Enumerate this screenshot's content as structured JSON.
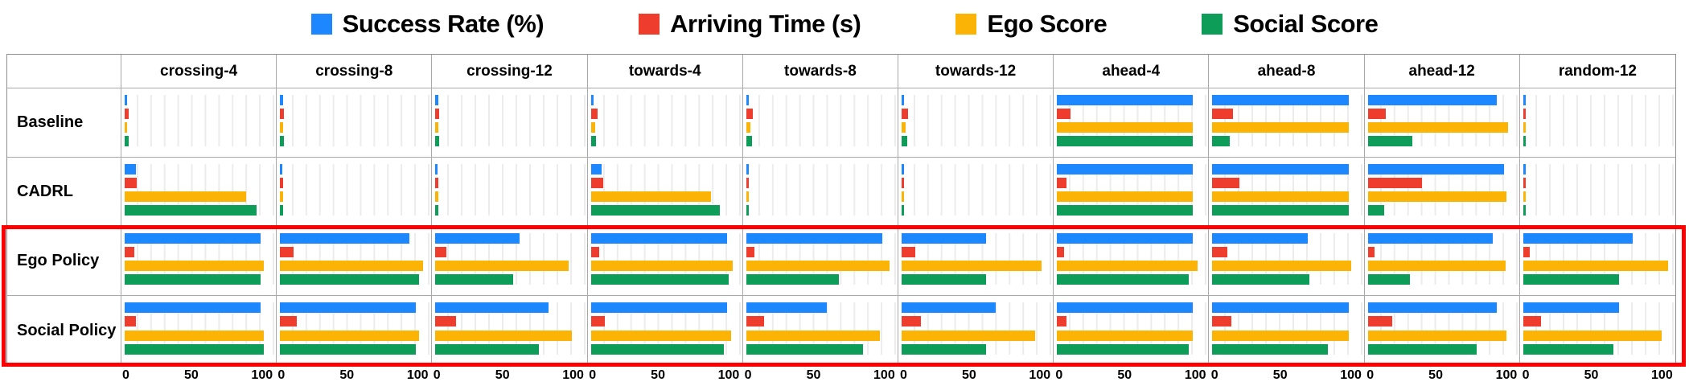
{
  "chart_data": {
    "type": "bar",
    "orientation": "horizontal",
    "title": "",
    "legend_position": "top",
    "axis": {
      "ticks": [
        "0",
        "50",
        "100"
      ],
      "max": 110,
      "grid": true
    },
    "series": [
      {
        "name": "Success Rate (%)",
        "color": "#1d87ff"
      },
      {
        "name": "Arriving Time (s)",
        "color": "#ee3c2d"
      },
      {
        "name": "Ego Score",
        "color": "#fbb305"
      },
      {
        "name": "Social Score",
        "color": "#0d9d58"
      }
    ],
    "categories": [
      "crossing-4",
      "crossing-8",
      "crossing-12",
      "towards-4",
      "towards-8",
      "towards-12",
      "ahead-4",
      "ahead-8",
      "ahead-12",
      "random-12"
    ],
    "rows": [
      {
        "label": "Baseline",
        "cells": [
          [
            2,
            3,
            2,
            3
          ],
          [
            2,
            3,
            2,
            3
          ],
          [
            2,
            3,
            2,
            3
          ],
          [
            2,
            5,
            3,
            4
          ],
          [
            2,
            5,
            3,
            4
          ],
          [
            2,
            5,
            3,
            4
          ],
          [
            100,
            10,
            100,
            100
          ],
          [
            100,
            15,
            100,
            13
          ],
          [
            95,
            13,
            103,
            33
          ],
          [
            1,
            2,
            2,
            2
          ]
        ]
      },
      {
        "label": "CADRL",
        "cells": [
          [
            8,
            9,
            89,
            97
          ],
          [
            1,
            2,
            2,
            2
          ],
          [
            1,
            2,
            2,
            2
          ],
          [
            8,
            9,
            88,
            95
          ],
          [
            1,
            2,
            2,
            2
          ],
          [
            1,
            2,
            2,
            2
          ],
          [
            100,
            7,
            100,
            100
          ],
          [
            100,
            20,
            100,
            100
          ],
          [
            100,
            40,
            102,
            12
          ],
          [
            1,
            2,
            2,
            2
          ]
        ]
      },
      {
        "label": "Ego Policy",
        "cells": [
          [
            100,
            7,
            102,
            100
          ],
          [
            95,
            10,
            105,
            102
          ],
          [
            62,
            8,
            98,
            57
          ],
          [
            100,
            6,
            104,
            101
          ],
          [
            100,
            6,
            105,
            68
          ],
          [
            62,
            10,
            103,
            62
          ],
          [
            100,
            5,
            103,
            97
          ],
          [
            70,
            11,
            102,
            71
          ],
          [
            92,
            5,
            101,
            31
          ],
          [
            80,
            5,
            106,
            70
          ]
        ]
      },
      {
        "label": "Social Policy",
        "cells": [
          [
            100,
            8,
            102,
            102
          ],
          [
            100,
            12,
            102,
            100
          ],
          [
            83,
            15,
            100,
            76
          ],
          [
            100,
            10,
            103,
            98
          ],
          [
            59,
            13,
            98,
            86
          ],
          [
            69,
            14,
            98,
            62
          ],
          [
            100,
            7,
            100,
            97
          ],
          [
            100,
            14,
            100,
            85
          ],
          [
            95,
            18,
            102,
            80
          ],
          [
            70,
            13,
            101,
            66
          ]
        ]
      }
    ],
    "highlight": {
      "description": "red rectangle outlining Ego Policy and Social Policy rows",
      "color": "#ff0000",
      "rows": [
        "Ego Policy",
        "Social Policy"
      ]
    }
  }
}
